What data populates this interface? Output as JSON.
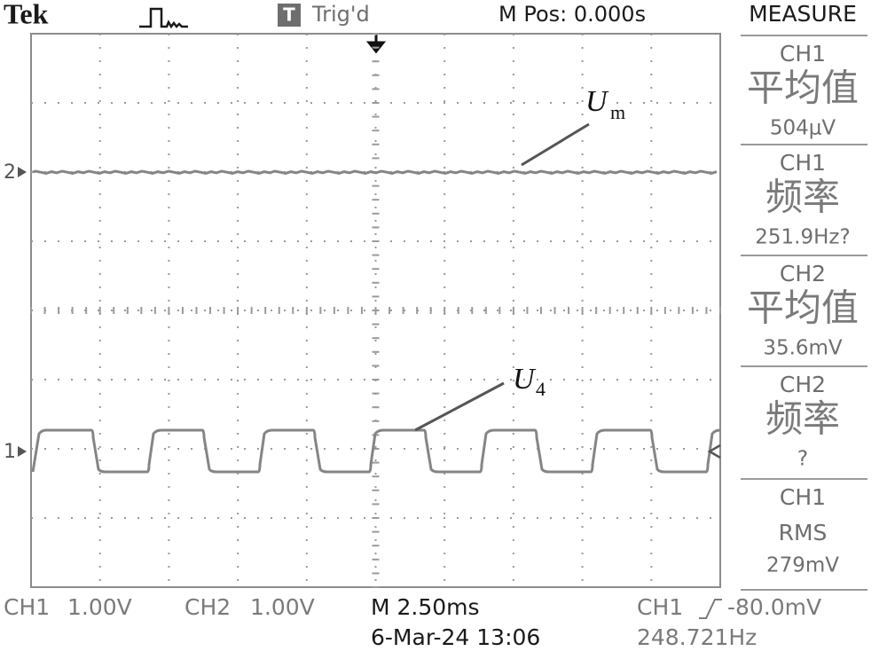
{
  "header": {
    "brand": "Tek",
    "trigger_icon": "T",
    "trigger_status": "Trig'd",
    "position": "M Pos: 0.000s",
    "menu_title": "MEASURE"
  },
  "markers": {
    "ch2": "2",
    "ch1": "1"
  },
  "annotations": [
    {
      "symbol": "U",
      "subscript": "m"
    },
    {
      "symbol": "U",
      "subscript": "4"
    }
  ],
  "measurements": [
    {
      "channel": "CH1",
      "type": "平均值",
      "value": "504μV"
    },
    {
      "channel": "CH1",
      "type": "频率",
      "value": "251.9Hz?"
    },
    {
      "channel": "CH2",
      "type": "平均值",
      "value": "35.6mV"
    },
    {
      "channel": "CH2",
      "type": "频率",
      "value": "?"
    },
    {
      "channel": "CH1",
      "type": "RMS",
      "value": "279mV"
    }
  ],
  "footer": {
    "ch1": {
      "channel": "CH1",
      "scale": "1.00V"
    },
    "ch2": {
      "channel": "CH2",
      "scale": "1.00V"
    },
    "timebase": "M 2.50ms",
    "date": "6-Mar-24 13:06",
    "trigger": {
      "channel": "CH1",
      "level": "-80.0mV"
    },
    "frequency": "248.721Hz"
  }
}
